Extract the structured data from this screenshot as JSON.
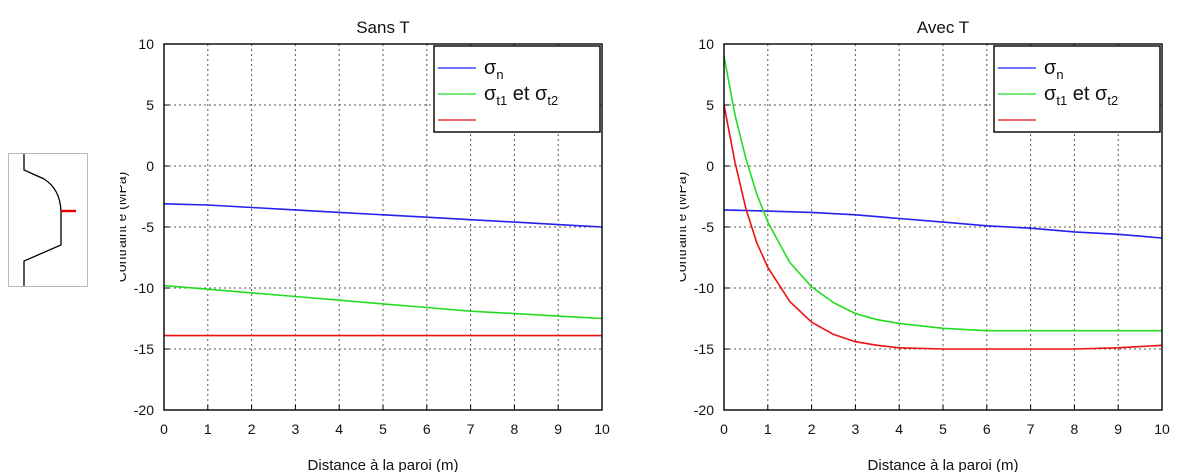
{
  "inset": {
    "outline_color": "#000000",
    "marker_color": "#e00000"
  },
  "chart_data": [
    {
      "type": "line",
      "title": "Sans T",
      "xlabel": "Distance à la paroi (m)",
      "ylabel": "Contraint e (MPa)",
      "xlim": [
        0,
        10
      ],
      "ylim": [
        -20,
        10
      ],
      "xticks": [
        "0",
        "1",
        "2",
        "3",
        "4",
        "5",
        "6",
        "7",
        "8",
        "9",
        "10"
      ],
      "yticks": [
        "-20",
        "-15",
        "-10",
        "-5",
        "0",
        "5",
        "10"
      ],
      "grid": true,
      "legend_position": "top-right",
      "legend": [
        {
          "base": "σ",
          "sub": "n",
          "mid": "",
          "base2": "",
          "sub2": "",
          "color": "#1f1fff"
        },
        {
          "base": "σ",
          "sub": "t1",
          "mid": " et ",
          "base2": "σ",
          "sub2": "t2",
          "color": "#22dd22"
        },
        {
          "base": "",
          "sub": "",
          "mid": "",
          "base2": "",
          "sub2": "",
          "color": "#ee1111"
        }
      ],
      "series": [
        {
          "color": "#2222ee",
          "x": [
            0,
            1,
            2,
            3,
            4,
            5,
            6,
            7,
            8,
            9,
            10
          ],
          "y": [
            -3.1,
            -3.2,
            -3.4,
            -3.6,
            -3.8,
            -4.0,
            -4.2,
            -4.4,
            -4.6,
            -4.8,
            -5.0
          ]
        },
        {
          "color": "#22dd22",
          "x": [
            0,
            1,
            2,
            3,
            4,
            5,
            6,
            7,
            8,
            9,
            10
          ],
          "y": [
            -9.8,
            -10.1,
            -10.4,
            -10.7,
            -11.0,
            -11.3,
            -11.6,
            -11.9,
            -12.1,
            -12.3,
            -12.5
          ]
        },
        {
          "color": "#ee1111",
          "x": [
            0,
            1,
            2,
            3,
            4,
            5,
            6,
            7,
            8,
            9,
            10
          ],
          "y": [
            -13.9,
            -13.9,
            -13.9,
            -13.9,
            -13.9,
            -13.9,
            -13.9,
            -13.9,
            -13.9,
            -13.9,
            -13.9
          ]
        }
      ]
    },
    {
      "type": "line",
      "title": "Avec T",
      "xlabel": "Distance à la paroi (m)",
      "ylabel": "Contraint e (MPa)",
      "xlim": [
        0,
        10
      ],
      "ylim": [
        -20,
        10
      ],
      "xticks": [
        "0",
        "1",
        "2",
        "3",
        "4",
        "5",
        "6",
        "7",
        "8",
        "9",
        "10"
      ],
      "yticks": [
        "-20",
        "-15",
        "-10",
        "-5",
        "0",
        "5",
        "10"
      ],
      "grid": true,
      "legend_position": "top-right",
      "legend": [
        {
          "base": "σ",
          "sub": "n",
          "mid": "",
          "base2": "",
          "sub2": "",
          "color": "#1f1fff"
        },
        {
          "base": "σ",
          "sub": "t1",
          "mid": " et ",
          "base2": "σ",
          "sub2": "t2",
          "color": "#22dd22"
        },
        {
          "base": "",
          "sub": "",
          "mid": "",
          "base2": "",
          "sub2": "",
          "color": "#ee1111"
        }
      ],
      "series": [
        {
          "color": "#2222ee",
          "x": [
            0,
            1,
            2,
            3,
            4,
            5,
            6,
            7,
            8,
            9,
            10
          ],
          "y": [
            -3.6,
            -3.7,
            -3.8,
            -4.0,
            -4.3,
            -4.6,
            -4.9,
            -5.1,
            -5.4,
            -5.6,
            -5.9
          ]
        },
        {
          "color": "#22dd22",
          "x": [
            0,
            0.25,
            0.5,
            0.75,
            1,
            1.5,
            2,
            2.5,
            3,
            3.5,
            4,
            5,
            6,
            7,
            8,
            9,
            10
          ],
          "y": [
            9.0,
            4.2,
            0.6,
            -2.3,
            -4.6,
            -7.9,
            -9.9,
            -11.2,
            -12.1,
            -12.6,
            -12.9,
            -13.3,
            -13.5,
            -13.5,
            -13.5,
            -13.5,
            -13.5
          ]
        },
        {
          "color": "#ee1111",
          "x": [
            0,
            0.25,
            0.5,
            0.75,
            1,
            1.5,
            2,
            2.5,
            3,
            3.5,
            4,
            5,
            6,
            7,
            8,
            9,
            10
          ],
          "y": [
            5.0,
            0.3,
            -3.5,
            -6.3,
            -8.3,
            -11.1,
            -12.8,
            -13.8,
            -14.4,
            -14.7,
            -14.9,
            -15.0,
            -15.0,
            -15.0,
            -15.0,
            -14.9,
            -14.7
          ]
        }
      ]
    }
  ]
}
